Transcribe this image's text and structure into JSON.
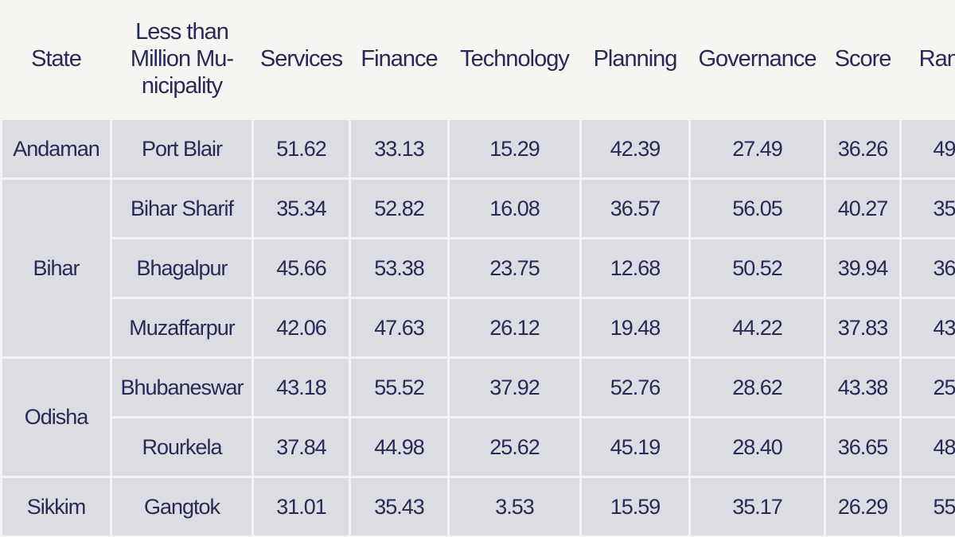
{
  "table": {
    "header": [
      [
        "State"
      ],
      [
        "Less than",
        "Million Mu-",
        "nicipality"
      ],
      [
        "Services"
      ],
      [
        "Finance"
      ],
      [
        "Technology"
      ],
      [
        "Planning"
      ],
      [
        "Governance"
      ],
      [
        "Score"
      ],
      [
        "Rank"
      ]
    ],
    "groups": [
      {
        "state": "Andaman",
        "rows": [
          [
            "Port Blair",
            "51.62",
            "33.13",
            "15.29",
            "42.39",
            "27.49",
            "36.26",
            "49"
          ]
        ]
      },
      {
        "state": "Bihar",
        "rows": [
          [
            "Bihar Sharif",
            "35.34",
            "52.82",
            "16.08",
            "36.57",
            "56.05",
            "40.27",
            "35"
          ],
          [
            "Bhagalpur",
            "45.66",
            "53.38",
            "23.75",
            "12.68",
            "50.52",
            "39.94",
            "36"
          ],
          [
            "Muzaffarpur",
            "42.06",
            "47.63",
            "26.12",
            "19.48",
            "44.22",
            "37.83",
            "43"
          ]
        ]
      },
      {
        "state": "Odisha",
        "rows": [
          [
            "Bhubaneswar",
            "43.18",
            "55.52",
            "37.92",
            "52.76",
            "28.62",
            "43.38",
            "25"
          ],
          [
            "Rourkela",
            "37.84",
            "44.98",
            "25.62",
            "45.19",
            "28.40",
            "36.65",
            "48"
          ]
        ]
      },
      {
        "state": "Sikkim",
        "rows": [
          [
            "Gangtok",
            "31.01",
            "35.43",
            "3.53",
            "15.59",
            "35.17",
            "26.29",
            "55"
          ]
        ]
      }
    ]
  }
}
